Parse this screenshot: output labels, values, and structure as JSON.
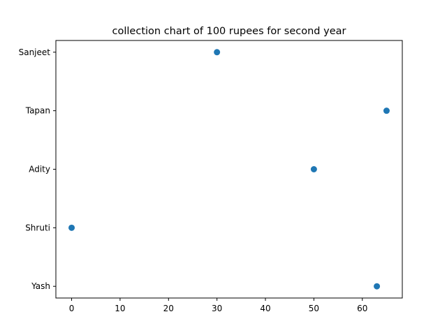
{
  "chart_data": {
    "type": "scatter",
    "title": "collection chart of 100 rupees for second year",
    "xlabel": "",
    "ylabel": "",
    "categories": [
      "Yash",
      "Shruti",
      "Adity",
      "Tapan",
      "Sanjeet"
    ],
    "points": [
      {
        "category": "Sanjeet",
        "x": 30
      },
      {
        "category": "Tapan",
        "x": 65
      },
      {
        "category": "Adity",
        "x": 50
      },
      {
        "category": "Shruti",
        "x": 0
      },
      {
        "category": "Yash",
        "x": 63
      }
    ],
    "xticks": [
      "0",
      "10",
      "20",
      "30",
      "40",
      "50",
      "60"
    ],
    "xlim": [
      -3.25,
      68.25
    ],
    "grid": false,
    "legend": "none",
    "marker_color": "#1f77b4"
  }
}
